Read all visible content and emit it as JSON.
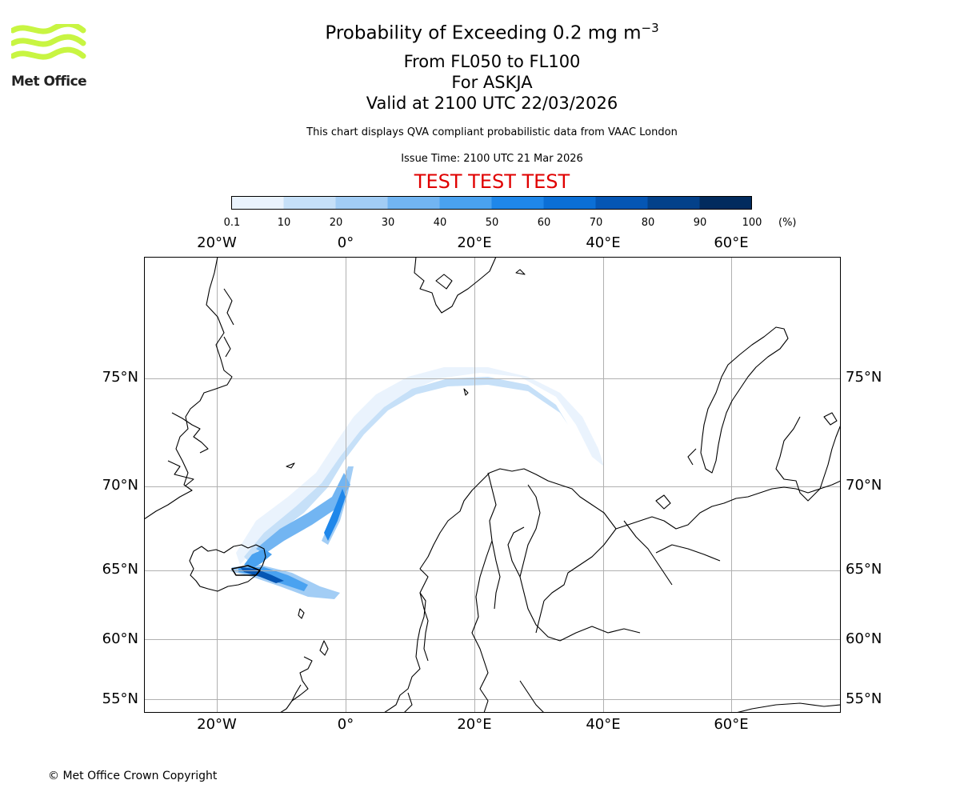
{
  "logo": {
    "name": "Met Office",
    "wave_color": "#c8f542"
  },
  "title": {
    "main": "Probability of Exceeding 0.2 mg m",
    "exponent": "−3",
    "line2": "From FL050 to FL100",
    "line3": "For ASKJA",
    "line4": "Valid at 2100 UTC 22/03/2026"
  },
  "subtitle": "This chart displays QVA compliant probabilistic data from VAAC London",
  "issue_time": "Issue Time: 2100 UTC 21 Mar 2026",
  "test_banner": "TEST TEST TEST",
  "colorbar": {
    "ticks": [
      "0.1",
      "10",
      "20",
      "30",
      "40",
      "50",
      "60",
      "70",
      "80",
      "90",
      "100"
    ],
    "unit": "(%)",
    "colors": [
      "#eaf3fd",
      "#c6e0f8",
      "#a2cdf5",
      "#72b5f2",
      "#4aa2f0",
      "#1f87ea",
      "#0b6fd6",
      "#0556b4",
      "#03418a",
      "#022b5e"
    ]
  },
  "map": {
    "lon_labels": [
      "20°W",
      "0°",
      "20°E",
      "40°E",
      "60°E"
    ],
    "lat_labels": [
      "75°N",
      "70°N",
      "65°N",
      "60°N",
      "55°N"
    ],
    "volcano": "ASKJA"
  },
  "copyright": "© Met Office Crown Copyright"
}
